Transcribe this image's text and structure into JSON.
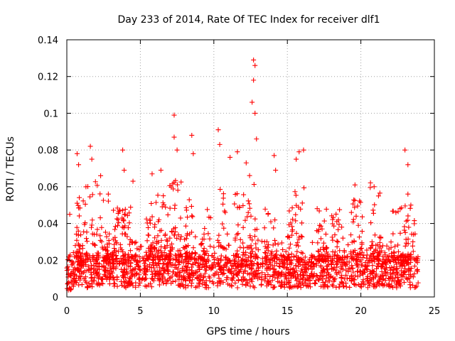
{
  "chart_data": {
    "type": "scatter",
    "title": "Day 233 of 2014, Rate Of TEC Index for receiver dlf1",
    "xlabel": "GPS time / hours",
    "ylabel": "ROTI / TECUs",
    "xlim": [
      0,
      25
    ],
    "ylim": [
      0,
      0.14
    ],
    "x_ticks": [
      "0",
      "5",
      "10",
      "15",
      "20",
      "25"
    ],
    "y_ticks": [
      "0",
      "0.02",
      "0.04",
      "0.06",
      "0.08",
      "0.1",
      "0.12",
      "0.14"
    ],
    "x_tick_values": [
      0,
      5,
      10,
      15,
      20,
      25
    ],
    "y_tick_values": [
      0,
      0.02,
      0.04,
      0.06,
      0.08,
      0.1,
      0.12,
      0.14
    ],
    "grid": true,
    "marker": "plus",
    "series_color": "#ff0000",
    "grid_color": "#a0a0a0",
    "data_extent": {
      "x": [
        0,
        23.9
      ],
      "y": [
        0.003,
        0.129
      ]
    },
    "prominent_points": [
      {
        "x": 0.2,
        "y": 0.045
      },
      {
        "x": 0.7,
        "y": 0.078
      },
      {
        "x": 0.8,
        "y": 0.072
      },
      {
        "x": 1.6,
        "y": 0.082
      },
      {
        "x": 1.7,
        "y": 0.075
      },
      {
        "x": 2.3,
        "y": 0.066
      },
      {
        "x": 3.8,
        "y": 0.08
      },
      {
        "x": 3.9,
        "y": 0.069
      },
      {
        "x": 4.5,
        "y": 0.063
      },
      {
        "x": 5.8,
        "y": 0.067
      },
      {
        "x": 6.4,
        "y": 0.069
      },
      {
        "x": 7.3,
        "y": 0.099
      },
      {
        "x": 7.3,
        "y": 0.087
      },
      {
        "x": 7.5,
        "y": 0.08
      },
      {
        "x": 8.5,
        "y": 0.088
      },
      {
        "x": 8.6,
        "y": 0.078
      },
      {
        "x": 10.3,
        "y": 0.091
      },
      {
        "x": 10.4,
        "y": 0.083
      },
      {
        "x": 11.1,
        "y": 0.076
      },
      {
        "x": 11.6,
        "y": 0.079
      },
      {
        "x": 12.2,
        "y": 0.073
      },
      {
        "x": 12.7,
        "y": 0.129
      },
      {
        "x": 12.8,
        "y": 0.126
      },
      {
        "x": 12.7,
        "y": 0.118
      },
      {
        "x": 12.6,
        "y": 0.106
      },
      {
        "x": 12.8,
        "y": 0.1
      },
      {
        "x": 12.9,
        "y": 0.086
      },
      {
        "x": 14.1,
        "y": 0.077
      },
      {
        "x": 14.2,
        "y": 0.069
      },
      {
        "x": 15.6,
        "y": 0.075
      },
      {
        "x": 15.8,
        "y": 0.079
      },
      {
        "x": 16.1,
        "y": 0.08
      },
      {
        "x": 19.6,
        "y": 0.061
      },
      {
        "x": 20.9,
        "y": 0.06
      },
      {
        "x": 21.2,
        "y": 0.055
      },
      {
        "x": 23.0,
        "y": 0.08
      },
      {
        "x": 23.2,
        "y": 0.072
      },
      {
        "x": 23.2,
        "y": 0.056
      },
      {
        "x": 23.4,
        "y": 0.05
      }
    ]
  }
}
